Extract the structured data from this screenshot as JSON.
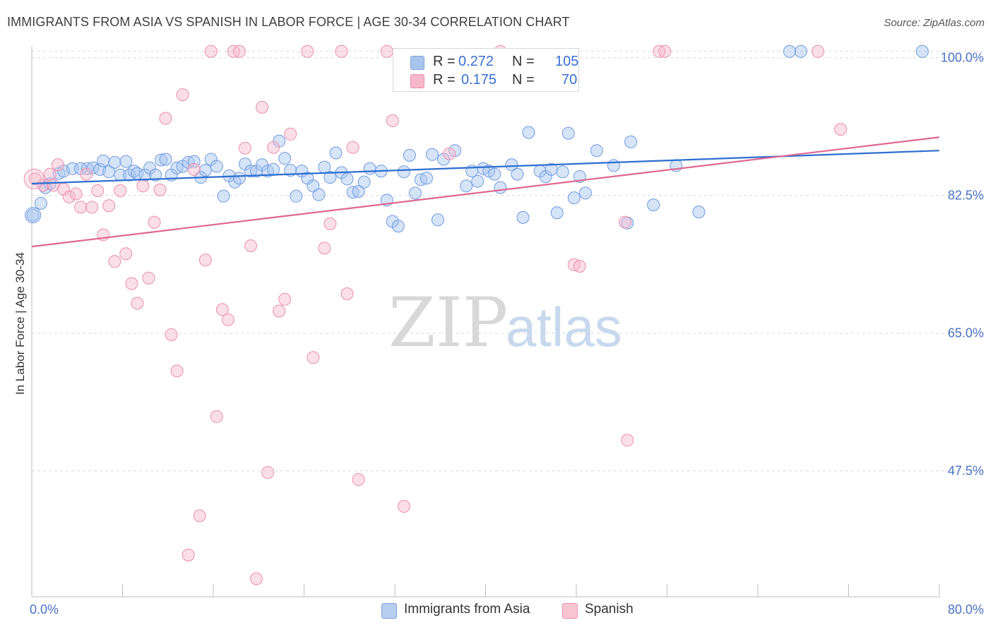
{
  "title": "IMMIGRANTS FROM ASIA VS SPANISH IN LABOR FORCE | AGE 30-34 CORRELATION CHART",
  "source": "Source: ZipAtlas.com",
  "watermark": {
    "zip": "ZIP",
    "atlas": "atlas"
  },
  "stats": [
    {
      "r_label": "R =",
      "r_value": "0.272",
      "n_label": "N =",
      "n_value": "105",
      "color": "#a9c4ec",
      "border": "#7ea4dd"
    },
    {
      "r_label": "R =",
      "r_value": "0.175",
      "n_label": "N =",
      "n_value": "70",
      "color": "#f6b8ca",
      "border": "#ec8fab"
    }
  ],
  "legend": [
    {
      "label": "Immigrants from Asia",
      "color": "#b6cdef",
      "border": "#7ea4dd"
    },
    {
      "label": "Spanish",
      "color": "#f8c5d3",
      "border": "#ec8fab"
    }
  ],
  "chart_data": {
    "type": "scatter",
    "title": "IMMIGRANTS FROM ASIA VS SPANISH IN LABOR FORCE | AGE 30-34 CORRELATION CHART",
    "xlabel": "",
    "ylabel": "In Labor Force | Age 30-34",
    "xlim": [
      0,
      80
    ],
    "ylim": [
      31.5,
      101.5
    ],
    "x_tick_labels": [
      "0.0%",
      "80.0%"
    ],
    "y_ticks": [
      47.5,
      65.0,
      82.5,
      100.0
    ],
    "y_tick_labels": [
      "47.5%",
      "65.0%",
      "82.5%",
      "100.0%"
    ],
    "grid": "horizontal dashed",
    "legend_position": "bottom",
    "series": [
      {
        "name": "Immigrants from Asia",
        "color": "#6f9be0",
        "fill": "rgba(165,195,240,0.45)",
        "trend": {
          "x": [
            0,
            80
          ],
          "y": [
            84.0,
            88.2
          ],
          "color": "#2e6fd0"
        },
        "points": [
          [
            0.1,
            80.0
          ],
          [
            0.8,
            81.5
          ],
          [
            1.2,
            83.5
          ],
          [
            1.6,
            84.0
          ],
          [
            2.4,
            85.3
          ],
          [
            2.8,
            85.6
          ],
          [
            3.6,
            85.9
          ],
          [
            4.3,
            85.9
          ],
          [
            4.9,
            85.9
          ],
          [
            5.4,
            86.0
          ],
          [
            6.0,
            85.8
          ],
          [
            6.3,
            86.9
          ],
          [
            6.8,
            85.5
          ],
          [
            7.3,
            86.7
          ],
          [
            7.8,
            85.1
          ],
          [
            8.3,
            86.8
          ],
          [
            8.6,
            85.1
          ],
          [
            9.0,
            85.6
          ],
          [
            9.3,
            85.3
          ],
          [
            10.0,
            85.1
          ],
          [
            10.4,
            86.0
          ],
          [
            10.9,
            85.1
          ],
          [
            11.4,
            87.0
          ],
          [
            11.8,
            87.1
          ],
          [
            12.3,
            85.1
          ],
          [
            12.8,
            86.0
          ],
          [
            13.3,
            86.2
          ],
          [
            13.8,
            86.7
          ],
          [
            14.3,
            86.8
          ],
          [
            14.9,
            84.8
          ],
          [
            15.3,
            85.7
          ],
          [
            15.8,
            87.1
          ],
          [
            16.3,
            86.2
          ],
          [
            16.9,
            82.4
          ],
          [
            17.4,
            85.0
          ],
          [
            17.9,
            84.2
          ],
          [
            18.3,
            84.7
          ],
          [
            18.8,
            86.5
          ],
          [
            19.3,
            85.6
          ],
          [
            19.8,
            85.6
          ],
          [
            20.3,
            86.4
          ],
          [
            20.8,
            85.6
          ],
          [
            21.3,
            85.8
          ],
          [
            21.8,
            89.4
          ],
          [
            22.3,
            87.2
          ],
          [
            22.8,
            85.7
          ],
          [
            23.3,
            82.4
          ],
          [
            23.8,
            85.6
          ],
          [
            24.3,
            84.7
          ],
          [
            24.8,
            83.7
          ],
          [
            25.3,
            82.6
          ],
          [
            25.8,
            86.1
          ],
          [
            26.3,
            84.8
          ],
          [
            26.8,
            87.9
          ],
          [
            27.3,
            85.4
          ],
          [
            27.8,
            84.6
          ],
          [
            28.3,
            82.9
          ],
          [
            28.8,
            83.0
          ],
          [
            29.3,
            84.2
          ],
          [
            29.8,
            85.9
          ],
          [
            30.8,
            85.6
          ],
          [
            31.3,
            81.9
          ],
          [
            31.8,
            79.2
          ],
          [
            32.3,
            78.6
          ],
          [
            32.8,
            85.5
          ],
          [
            33.3,
            87.6
          ],
          [
            33.8,
            82.8
          ],
          [
            34.3,
            84.5
          ],
          [
            34.8,
            84.7
          ],
          [
            35.3,
            87.7
          ],
          [
            35.8,
            79.4
          ],
          [
            36.3,
            87.1
          ],
          [
            37.3,
            88.2
          ],
          [
            38.3,
            83.7
          ],
          [
            38.8,
            85.6
          ],
          [
            39.3,
            84.3
          ],
          [
            39.8,
            85.9
          ],
          [
            40.3,
            85.6
          ],
          [
            40.8,
            85.2
          ],
          [
            41.3,
            83.5
          ],
          [
            42.3,
            86.4
          ],
          [
            42.8,
            85.2
          ],
          [
            43.3,
            79.7
          ],
          [
            43.8,
            90.5
          ],
          [
            44.8,
            85.6
          ],
          [
            45.3,
            84.9
          ],
          [
            45.8,
            85.8
          ],
          [
            46.3,
            80.3
          ],
          [
            46.8,
            85.5
          ],
          [
            47.3,
            90.4
          ],
          [
            47.8,
            82.2
          ],
          [
            48.3,
            84.9
          ],
          [
            48.8,
            82.8
          ],
          [
            49.8,
            88.2
          ],
          [
            51.3,
            86.3
          ],
          [
            52.8,
            89.3
          ],
          [
            54.8,
            81.3
          ],
          [
            56.8,
            86.3
          ],
          [
            58.8,
            80.4
          ],
          [
            66.8,
            100.8
          ],
          [
            67.8,
            100.8
          ],
          [
            78.5,
            100.8
          ],
          [
            52.5,
            79.0
          ]
        ]
      },
      {
        "name": "Spanish",
        "color": "#ea8fab",
        "fill": "rgba(246,185,203,0.45)",
        "trend": {
          "x": [
            0,
            80
          ],
          "y": [
            76.0,
            89.9
          ],
          "color": "#e0688f"
        },
        "points": [
          [
            0.3,
            84.6
          ],
          [
            1.0,
            83.8
          ],
          [
            1.6,
            85.2
          ],
          [
            1.9,
            83.8
          ],
          [
            2.3,
            86.4
          ],
          [
            2.8,
            83.3
          ],
          [
            3.3,
            82.3
          ],
          [
            3.9,
            82.7
          ],
          [
            4.3,
            81.0
          ],
          [
            4.8,
            85.2
          ],
          [
            5.3,
            81.0
          ],
          [
            5.8,
            83.1
          ],
          [
            6.3,
            77.5
          ],
          [
            6.8,
            81.2
          ],
          [
            7.3,
            74.1
          ],
          [
            7.8,
            83.1
          ],
          [
            8.3,
            75.1
          ],
          [
            8.8,
            71.3
          ],
          [
            9.3,
            68.8
          ],
          [
            9.8,
            83.7
          ],
          [
            10.3,
            72.0
          ],
          [
            10.8,
            79.1
          ],
          [
            11.3,
            83.2
          ],
          [
            11.8,
            92.3
          ],
          [
            12.3,
            64.8
          ],
          [
            12.8,
            60.2
          ],
          [
            13.3,
            95.3
          ],
          [
            13.8,
            36.8
          ],
          [
            14.3,
            85.8
          ],
          [
            14.8,
            41.8
          ],
          [
            15.3,
            74.3
          ],
          [
            15.8,
            100.8
          ],
          [
            16.3,
            54.4
          ],
          [
            16.8,
            68.0
          ],
          [
            17.3,
            66.7
          ],
          [
            17.8,
            100.8
          ],
          [
            18.3,
            100.8
          ],
          [
            18.8,
            88.5
          ],
          [
            19.3,
            76.1
          ],
          [
            19.8,
            33.8
          ],
          [
            20.3,
            93.7
          ],
          [
            20.8,
            47.3
          ],
          [
            21.3,
            88.6
          ],
          [
            21.8,
            67.8
          ],
          [
            22.3,
            69.3
          ],
          [
            22.8,
            90.3
          ],
          [
            24.3,
            100.8
          ],
          [
            24.8,
            61.9
          ],
          [
            25.8,
            75.8
          ],
          [
            26.3,
            78.9
          ],
          [
            27.3,
            100.8
          ],
          [
            27.8,
            70.0
          ],
          [
            28.3,
            88.6
          ],
          [
            28.8,
            46.4
          ],
          [
            31.3,
            100.8
          ],
          [
            31.8,
            92.0
          ],
          [
            32.8,
            43.0
          ],
          [
            36.8,
            87.8
          ],
          [
            41.3,
            100.8
          ],
          [
            47.8,
            73.7
          ],
          [
            48.3,
            73.5
          ],
          [
            52.3,
            79.1
          ],
          [
            52.5,
            51.4
          ],
          [
            55.3,
            100.8
          ],
          [
            55.8,
            100.8
          ],
          [
            69.3,
            100.8
          ],
          [
            71.3,
            90.9
          ]
        ]
      }
    ]
  }
}
